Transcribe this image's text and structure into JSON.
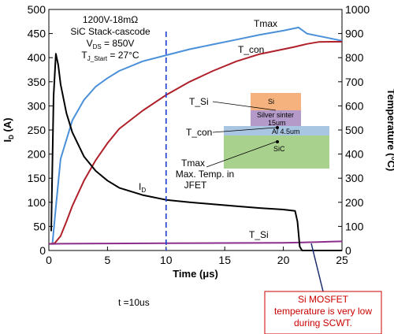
{
  "chart_data": {
    "type": "line",
    "xlabel": "Time (μs)",
    "ylabel": "I",
    "ylabel_sub": "D",
    "ylabel_unit": " (A)",
    "y2label": "Temperature (°C)",
    "xlim": [
      0,
      25
    ],
    "ylim": [
      0,
      500
    ],
    "y2lim": [
      0,
      1000
    ],
    "x_ticks": [
      "0",
      "5",
      "10",
      "15",
      "20",
      "25"
    ],
    "y_ticks": [
      "0",
      "50",
      "100",
      "150",
      "200",
      "250",
      "300",
      "350",
      "400",
      "450",
      "500"
    ],
    "y2_ticks": [
      "0",
      "100",
      "200",
      "300",
      "400",
      "500",
      "600",
      "700",
      "800",
      "900",
      "1000"
    ],
    "grid": false,
    "conditions": [
      {
        "pre": "1200V-18mΩ",
        "sub": "",
        "post": ""
      },
      {
        "pre": "SiC Stack-cascode",
        "sub": "",
        "post": ""
      },
      {
        "pre": "V",
        "sub": "DS",
        "post": " = 850V"
      },
      {
        "pre": "T",
        "sub": "J_Start",
        "post": " = 27°C"
      }
    ],
    "series": [
      {
        "name": "Tmax",
        "axis": "right",
        "color": "#4a90d9",
        "x": [
          0.3,
          0.6,
          1,
          2,
          3,
          4,
          5,
          6,
          8,
          10,
          12,
          14,
          16,
          18,
          20,
          21.3,
          22,
          23,
          24,
          25
        ],
        "y": [
          27,
          180,
          380,
          540,
          625,
          680,
          715,
          745,
          785,
          810,
          835,
          855,
          875,
          895,
          912,
          925,
          900,
          890,
          880,
          870
        ]
      },
      {
        "name": "T_con",
        "axis": "right",
        "color": "#b0202a",
        "x": [
          0,
          0.5,
          1,
          1.5,
          2,
          3,
          4,
          5,
          6,
          8,
          10,
          12,
          14,
          16,
          18,
          20,
          21,
          22,
          23,
          24,
          25
        ],
        "y": [
          27,
          30,
          60,
          120,
          185,
          290,
          375,
          445,
          505,
          580,
          645,
          700,
          745,
          785,
          815,
          835,
          845,
          857,
          865,
          866,
          866
        ]
      },
      {
        "name": "T_Si",
        "axis": "right",
        "color": "#8b2f8b",
        "x": [
          0,
          1,
          5,
          10,
          15,
          20,
          21.3,
          22,
          23,
          24,
          25
        ],
        "y": [
          27,
          28,
          29,
          30,
          31,
          32,
          33,
          34,
          35,
          37,
          38
        ]
      },
      {
        "name": "I_D",
        "axis": "left",
        "color": "#000000",
        "x": [
          0.2,
          0.4,
          0.6,
          0.8,
          1,
          1.5,
          2,
          3,
          4,
          5,
          6,
          8,
          10,
          12,
          14,
          16,
          18,
          20,
          21,
          21.2,
          21.4,
          21.6,
          25
        ],
        "y": [
          40,
          320,
          408,
          385,
          345,
          285,
          245,
          195,
          165,
          145,
          130,
          115,
          105,
          100,
          96,
          92,
          88,
          85,
          82,
          60,
          8,
          0,
          0
        ]
      }
    ],
    "annotations": {
      "tmax": "Tmax",
      "t_con": "T_con",
      "t_si": "T_Si",
      "id_pre": "I",
      "id_sub": "D",
      "marker_label": "t =10us",
      "callout": [
        "Si MOSFET",
        "temperature is very low",
        "during  SCWT."
      ]
    },
    "inset": {
      "layers": [
        {
          "label": "Si",
          "color": "#f5b27e"
        },
        {
          "label": "Silver sinter",
          "label2": "15um",
          "color": "#b39ac9"
        },
        {
          "label": "Al 4.5um",
          "color": "#a8c6e2"
        },
        {
          "label": "SiC",
          "color": "#a9d18e"
        }
      ],
      "labels": {
        "t_si": "T_Si",
        "t_con": "T_con",
        "tmax": [
          "Tmax",
          "Max. Temp. in",
          "JFET"
        ]
      }
    }
  }
}
